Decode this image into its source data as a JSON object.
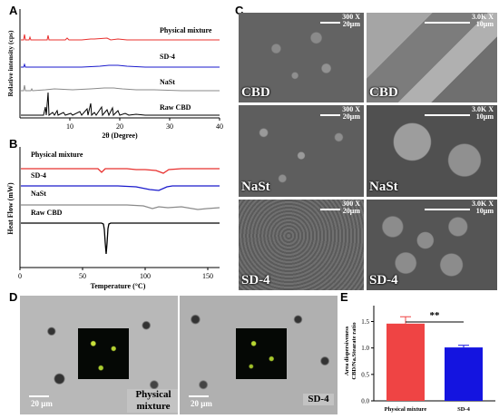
{
  "panels": {
    "A": "A",
    "B": "B",
    "C": "C",
    "D": "D",
    "E": "E"
  },
  "panel_a": {
    "ylabel": "Relative intensity (cps)",
    "xlabel": "2θ (Degree)",
    "xticks": [
      "10",
      "20",
      "30",
      "40"
    ],
    "traces": [
      {
        "name": "Physical mixture",
        "color": "#e8302e"
      },
      {
        "name": "SD-4",
        "color": "#1a1acc"
      },
      {
        "name": "NaSt",
        "color": "#8a8a8a"
      },
      {
        "name": "Raw CBD",
        "color": "#000000"
      }
    ]
  },
  "panel_b": {
    "ylabel": "Heat Flow (mW)",
    "xlabel": "Temperature (°C)",
    "xticks": [
      "0",
      "50",
      "100",
      "150"
    ],
    "traces": [
      {
        "name": "Physical mixture",
        "color": "#e8302e"
      },
      {
        "name": "SD-4",
        "color": "#1a1acc"
      },
      {
        "name": "NaSt",
        "color": "#8a8a8a"
      },
      {
        "name": "Raw CBD",
        "color": "#000000"
      }
    ]
  },
  "panel_c": {
    "images": [
      {
        "label": "CBD",
        "mag": "300 X",
        "scale": "20μm"
      },
      {
        "label": "CBD",
        "mag": "3.0K X",
        "scale": "10μm"
      },
      {
        "label": "NaSt",
        "mag": "300 X",
        "scale": "20μm"
      },
      {
        "label": "NaSt",
        "mag": "3.0K X",
        "scale": "10μm"
      },
      {
        "label": "SD-4",
        "mag": "300 X",
        "scale": "20μm"
      },
      {
        "label": "SD-4",
        "mag": "3.0K X",
        "scale": "10μm"
      }
    ]
  },
  "panel_d": {
    "left_label_line1": "Physical",
    "left_label_line2": "mixture",
    "right_label": "SD-4",
    "scale_left": "20 μm",
    "scale_right": "20 μm"
  },
  "chart_data": {
    "type": "bar",
    "categories": [
      "Physical mixture",
      "SD-4"
    ],
    "values": [
      1.46,
      1.01
    ],
    "errors": [
      0.13,
      0.04
    ],
    "colors": [
      "#ef4444",
      "#1414e0"
    ],
    "ylabel_line1": "Area dispersiveness",
    "ylabel_line2": "CBD/Na.Stearate ratio",
    "yticks": [
      "0.0",
      "0.5",
      "1.0",
      "1.5"
    ],
    "ylim": [
      0,
      1.8
    ],
    "significance": "**"
  }
}
